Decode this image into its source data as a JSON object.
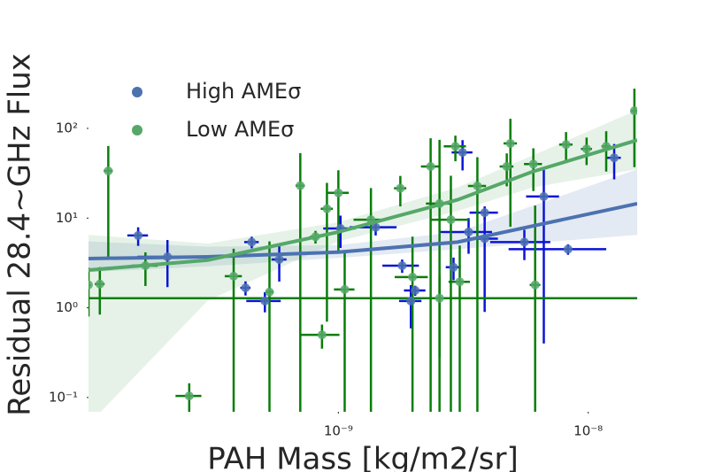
{
  "chart_data": {
    "type": "errorbar",
    "xlabel": "PAH Mass [kg/m2/sr]",
    "ylabel": "Residual 28.4~GHz Flux",
    "xscale": "log",
    "yscale": "log",
    "xlim": [
      1e-10,
      1.57e-08
    ],
    "ylim": [
      0.0693,
      278
    ],
    "xticks": [
      {
        "value": 1e-09,
        "label": "10⁻⁹"
      },
      {
        "value": 1e-08,
        "label": "10⁻⁸"
      }
    ],
    "yticks": [
      {
        "value": 0.1,
        "label": "10⁻¹"
      },
      {
        "value": 1,
        "label": "10⁰"
      },
      {
        "value": 10,
        "label": "10¹"
      },
      {
        "value": 100,
        "label": "10²"
      }
    ],
    "legend": "upper left",
    "series": [
      {
        "name": "High AMEσ",
        "color": "#4c72b0",
        "ecolor": "#0a14d6",
        "x": [
          1.58e-10,
          2.07e-10,
          4.25e-10,
          4.5e-10,
          5.08e-10,
          5.8e-10,
          1.02e-09,
          1.41e-09,
          1.8e-09,
          1.95e-09,
          2.03e-09,
          2.89e-09,
          3.14e-09,
          3.32e-09,
          3.85e-09,
          3.85e-09,
          5.55e-09,
          8.3e-09,
          6.64e-09,
          1.27e-08
        ],
        "values": [
          6.4,
          3.7,
          1.67,
          5.4,
          1.19,
          3.46,
          7.65,
          7.9,
          2.95,
          1.19,
          1.56,
          2.83,
          54,
          7.0,
          11.5,
          5.9,
          5.4,
          4.5,
          17.4,
          47
        ],
        "xerr": [
          1.5e-11,
          5e-11,
          2e-11,
          3e-11,
          8e-11,
          4e-11,
          1.5e-10,
          3e-10,
          3e-10,
          2e-10,
          2e-10,
          2e-10,
          3e-10,
          8e-10,
          5e-10,
          5e-10,
          1.5e-09,
          3.5e-09,
          1e-09,
          8e-10
        ],
        "yerr": [
          1.5,
          2.0,
          0.3,
          0.8,
          0.3,
          1.5,
          3,
          1.5,
          0.5,
          0.6,
          0.2,
          0.8,
          20,
          3,
          2,
          5,
          2,
          0.6,
          17,
          20
        ],
        "fit": {
          "x": [
            1e-10,
            3e-10,
            1e-09,
            3e-09,
            1.57e-08
          ],
          "y": [
            3.54,
            3.7,
            4.17,
            5.4,
            14.5
          ],
          "lower": [
            2.5,
            2.9,
            3.6,
            4.5,
            6.5
          ],
          "upper": [
            5.5,
            4.8,
            5.0,
            7.0,
            35
          ]
        }
      },
      {
        "name": "Low AMEσ",
        "color": "#55a868",
        "ecolor": "#0a7d0a",
        "x": [
          1e-10,
          1.11e-10,
          1.2e-10,
          1.69e-10,
          2.53e-10,
          3.81e-10,
          5.3e-10,
          7.04e-10,
          8.1e-10,
          8.6e-10,
          9e-10,
          1e-09,
          1.06e-09,
          1.35e-09,
          1.77e-09,
          1.98e-09,
          2.34e-09,
          2.54e-09,
          2.54e-09,
          2.82e-09,
          2.94e-09,
          3.06e-09,
          3.6e-09,
          4.72e-09,
          4.88e-09,
          6.03e-09,
          6.13e-09,
          8.15e-09,
          9.85e-09,
          1.18e-08,
          1.53e-08
        ],
        "values": [
          1.8,
          1.84,
          33.6,
          2.95,
          0.104,
          2.25,
          1.5,
          23,
          6.2,
          0.5,
          12.7,
          19.1,
          1.6,
          9.6,
          21.5,
          2.2,
          37.6,
          1.28,
          14.5,
          9.6,
          63,
          1.95,
          22.8,
          37.6,
          68,
          40,
          1.8,
          66,
          59,
          63,
          157
        ],
        "xerr": [
          2e-12,
          5e-12,
          5e-12,
          2e-11,
          3e-11,
          3e-11,
          2e-11,
          3e-11,
          4e-11,
          1.5e-10,
          5e-11,
          1e-10,
          1e-10,
          2e-10,
          1e-10,
          3e-10,
          2e-10,
          1.4e-08,
          3e-10,
          5e-10,
          3e-10,
          3e-10,
          3e-10,
          3e-10,
          3e-10,
          5e-10,
          3e-10,
          5e-10,
          5e-10,
          5e-10,
          5e-10
        ],
        "yerr": [
          1.0,
          1.0,
          30,
          1.2,
          0.04,
          2.3,
          4,
          30,
          1,
          0.15,
          12,
          15,
          2.5,
          12,
          8,
          4,
          40,
          1.0,
          60,
          20,
          20,
          3,
          25,
          15,
          60,
          20,
          12,
          25,
          20,
          30,
          120
        ],
        "fit": {
          "x": [
            1e-10,
            3e-10,
            1e-09,
            3e-09,
            6e-09,
            1.57e-08
          ],
          "y": [
            2.63,
            3.4,
            7.0,
            16,
            33,
            74
          ],
          "lower": [
            0.05,
            1.2,
            5.5,
            12,
            22,
            35
          ],
          "upper": [
            6.5,
            5.2,
            9,
            22,
            50,
            160
          ]
        }
      }
    ]
  }
}
